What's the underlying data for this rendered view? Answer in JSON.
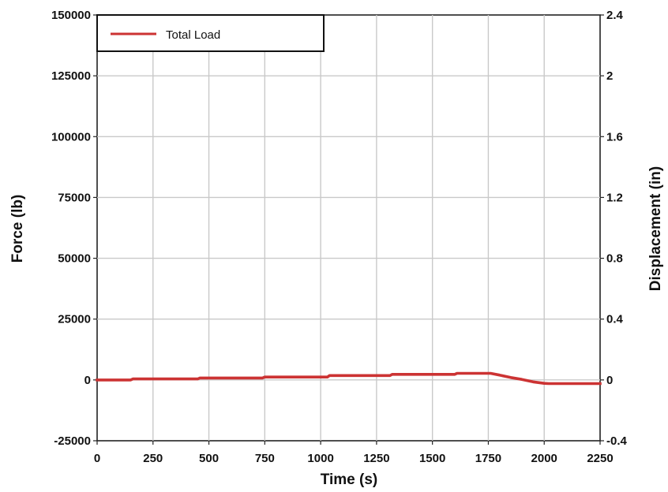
{
  "chart_data": {
    "type": "line",
    "xlabel": "Time (s)",
    "ylabel_left": "Force (lb)",
    "ylabel_right": "Displacement (in)",
    "xlim": [
      0,
      2250
    ],
    "ylim_left": [
      -25000,
      150000
    ],
    "ylim_right": [
      -0.4,
      2.4
    ],
    "x_ticks": [
      0,
      250,
      500,
      750,
      1000,
      1250,
      1500,
      1750,
      2000,
      2250
    ],
    "y_left_ticks": [
      -25000,
      0,
      25000,
      50000,
      75000,
      100000,
      125000,
      150000
    ],
    "y_right_ticks": [
      -0.4,
      0,
      0.4,
      0.8,
      1.2,
      1.6,
      2,
      2.4
    ],
    "grid": true,
    "legend_position": "top-left",
    "series": [
      {
        "name": "Total Load",
        "color": "#cc3333",
        "axis": "left",
        "x": [
          0,
          150,
          160,
          450,
          460,
          740,
          750,
          1030,
          1040,
          1310,
          1320,
          1600,
          1610,
          1760,
          1800,
          1850,
          1900,
          1950,
          2000,
          2020,
          2250
        ],
        "y": [
          0,
          0,
          400,
          400,
          800,
          800,
          1200,
          1200,
          1800,
          1800,
          2300,
          2300,
          2700,
          2700,
          2000,
          1000,
          200,
          -800,
          -1400,
          -1500,
          -1500
        ]
      }
    ]
  }
}
